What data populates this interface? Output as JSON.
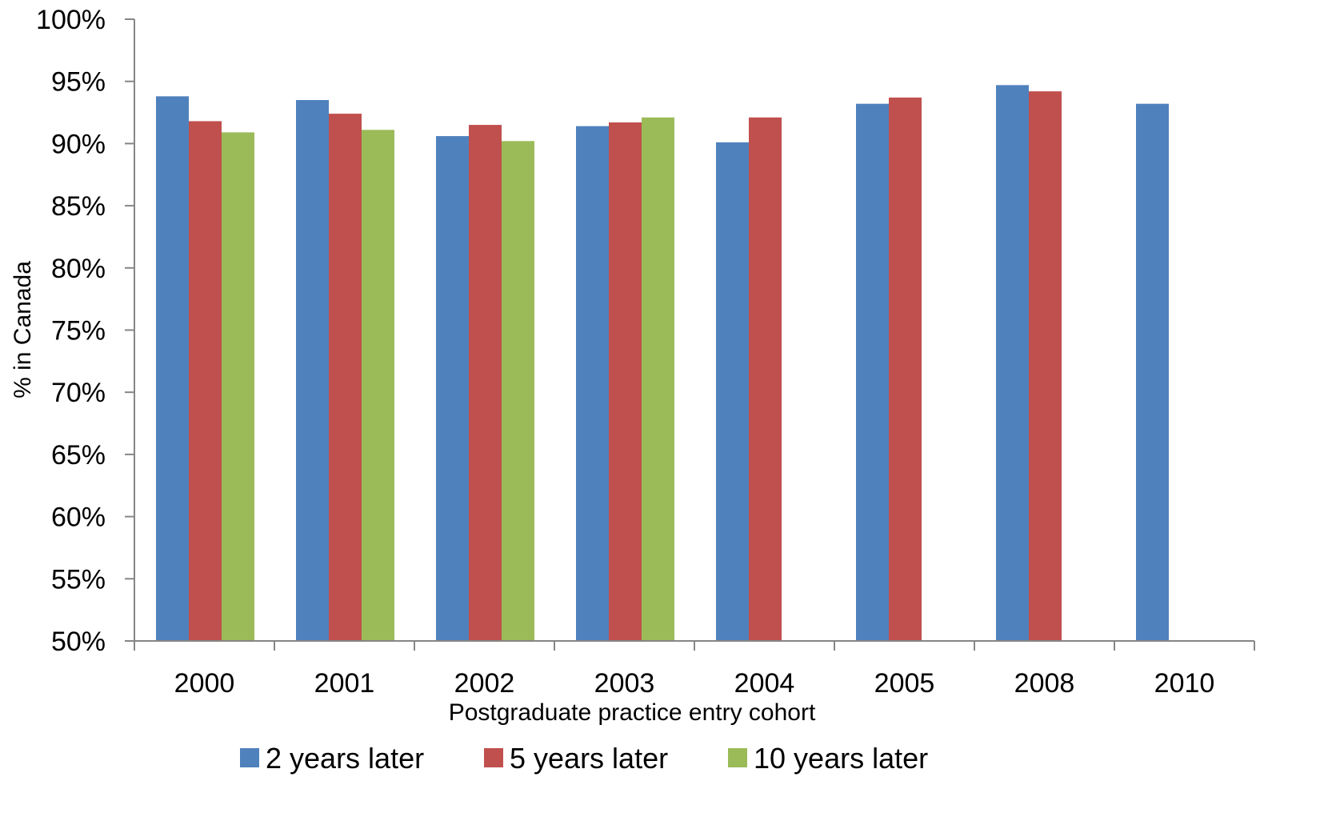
{
  "chart_data": {
    "type": "bar",
    "title": "",
    "xlabel": "Postgraduate practice entry cohort",
    "ylabel": "% in Canada",
    "ylim": [
      50,
      100
    ],
    "yticks": [
      "50%",
      "55%",
      "60%",
      "65%",
      "70%",
      "75%",
      "80%",
      "85%",
      "90%",
      "95%",
      "100%"
    ],
    "categories": [
      "2000",
      "2001",
      "2002",
      "2003",
      "2004",
      "2005",
      "2008",
      "2010"
    ],
    "series": [
      {
        "name": "2 years later",
        "color": "#4F81BD",
        "values": [
          93.8,
          93.5,
          90.6,
          91.4,
          90.1,
          93.2,
          94.7,
          93.2
        ]
      },
      {
        "name": "5 years later",
        "color": "#C0504D",
        "values": [
          91.8,
          92.4,
          91.5,
          91.7,
          92.1,
          93.7,
          94.2,
          null
        ]
      },
      {
        "name": "10 years later",
        "color": "#9BBB59",
        "values": [
          90.9,
          91.1,
          90.2,
          92.1,
          null,
          null,
          null,
          null
        ]
      }
    ],
    "grid": false,
    "legend_position": "bottom"
  }
}
